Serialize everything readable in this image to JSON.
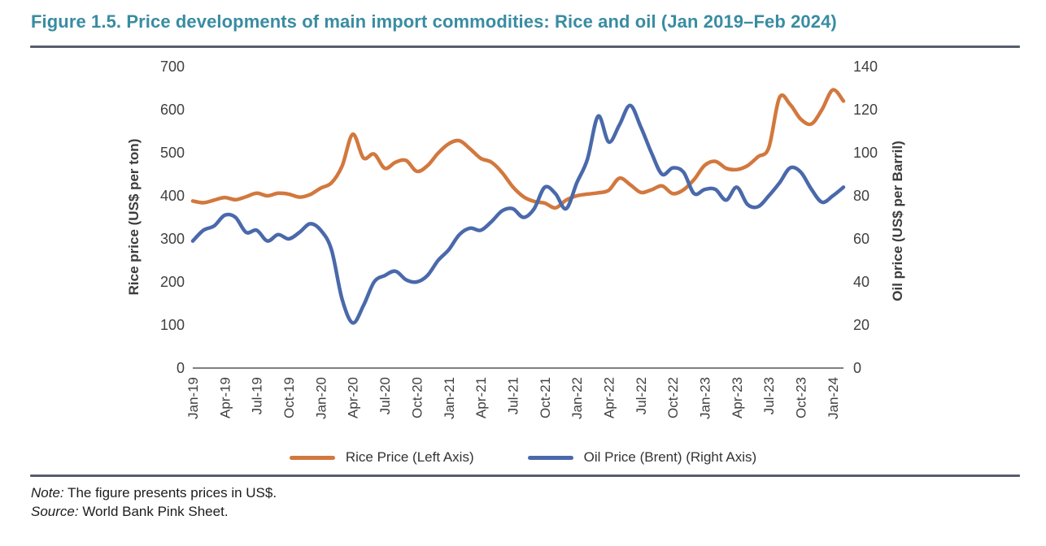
{
  "figure": {
    "title": "Figure 1.5. Price developments of main import commodities: Rice and oil (Jan 2019–Feb 2024)",
    "note": {
      "label": "Note:",
      "text": " The figure presents prices in US$."
    },
    "source": {
      "label": "Source:",
      "text": " World Bank Pink Sheet."
    }
  },
  "colors": {
    "title": "#398CA2",
    "rule": "#575D6C",
    "rice": "#D2783E",
    "oil": "#4A69AB",
    "axis_text": "#404040",
    "axis_line": "#7F7F7F"
  },
  "chart_data": {
    "type": "line",
    "title": "Price developments of main import commodities: Rice and oil (Jan 2019–Feb 2024)",
    "grid": false,
    "legend_position": "bottom",
    "x": [
      "Jan-19",
      "Feb-19",
      "Mar-19",
      "Apr-19",
      "May-19",
      "Jun-19",
      "Jul-19",
      "Aug-19",
      "Sep-19",
      "Oct-19",
      "Nov-19",
      "Dec-19",
      "Jan-20",
      "Feb-20",
      "Mar-20",
      "Apr-20",
      "May-20",
      "Jun-20",
      "Jul-20",
      "Aug-20",
      "Sep-20",
      "Oct-20",
      "Nov-20",
      "Dec-20",
      "Jan-21",
      "Feb-21",
      "Mar-21",
      "Apr-21",
      "May-21",
      "Jun-21",
      "Jul-21",
      "Aug-21",
      "Sep-21",
      "Oct-21",
      "Nov-21",
      "Dec-21",
      "Jan-22",
      "Feb-22",
      "Mar-22",
      "Apr-22",
      "May-22",
      "Jun-22",
      "Jul-22",
      "Aug-22",
      "Sep-22",
      "Oct-22",
      "Nov-22",
      "Dec-22",
      "Jan-23",
      "Feb-23",
      "Mar-23",
      "Apr-23",
      "May-23",
      "Jun-23",
      "Jul-23",
      "Aug-23",
      "Sep-23",
      "Oct-23",
      "Nov-23",
      "Dec-23",
      "Jan-24",
      "Feb-24"
    ],
    "x_ticks": [
      "Jan-19",
      "Apr-19",
      "Jul-19",
      "Oct-19",
      "Jan-20",
      "Apr-20",
      "Jul-20",
      "Oct-20",
      "Jan-21",
      "Apr-21",
      "Jul-21",
      "Oct-21",
      "Jan-22",
      "Apr-22",
      "Jul-22",
      "Oct-22",
      "Jan-23",
      "Apr-23",
      "Jul-23",
      "Oct-23",
      "Jan-24"
    ],
    "left_axis": {
      "label": "Rice price (US$ per ton)",
      "min": 0,
      "max": 700,
      "step": 100
    },
    "right_axis": {
      "label": "Oil price (US$ per Barril)",
      "min": 0,
      "max": 140,
      "step": 20
    },
    "series": [
      {
        "id": "rice",
        "name": "Rice Price (Left Axis)",
        "axis": "left",
        "color": "#D2783E",
        "values": [
          388,
          384,
          390,
          396,
          391,
          398,
          406,
          400,
          406,
          404,
          397,
          403,
          418,
          430,
          469,
          543,
          488,
          497,
          464,
          478,
          482,
          457,
          470,
          499,
          521,
          528,
          509,
          487,
          478,
          454,
          421,
          398,
          387,
          383,
          372,
          390,
          400,
          404,
          407,
          413,
          441,
          426,
          408,
          414,
          423,
          405,
          414,
          438,
          471,
          480,
          464,
          461,
          470,
          491,
          512,
          628,
          612,
          578,
          567,
          601,
          646,
          620
        ]
      },
      {
        "id": "oil",
        "name": "Oil Price (Brent) (Right Axis)",
        "axis": "right",
        "color": "#4A69AB",
        "values": [
          59,
          64,
          66,
          71,
          70,
          63,
          64,
          59,
          62,
          60,
          63,
          67,
          64,
          55,
          32,
          21,
          29,
          40,
          43,
          45,
          41,
          40,
          43,
          50,
          55,
          62,
          65,
          64,
          68,
          73,
          74,
          70,
          74,
          84,
          81,
          74,
          86,
          97,
          117,
          105,
          113,
          122,
          112,
          100,
          90,
          93,
          91,
          81,
          83,
          83,
          78,
          84,
          76,
          75,
          80,
          86,
          93,
          91,
          83,
          77,
          80,
          84
        ]
      }
    ]
  }
}
